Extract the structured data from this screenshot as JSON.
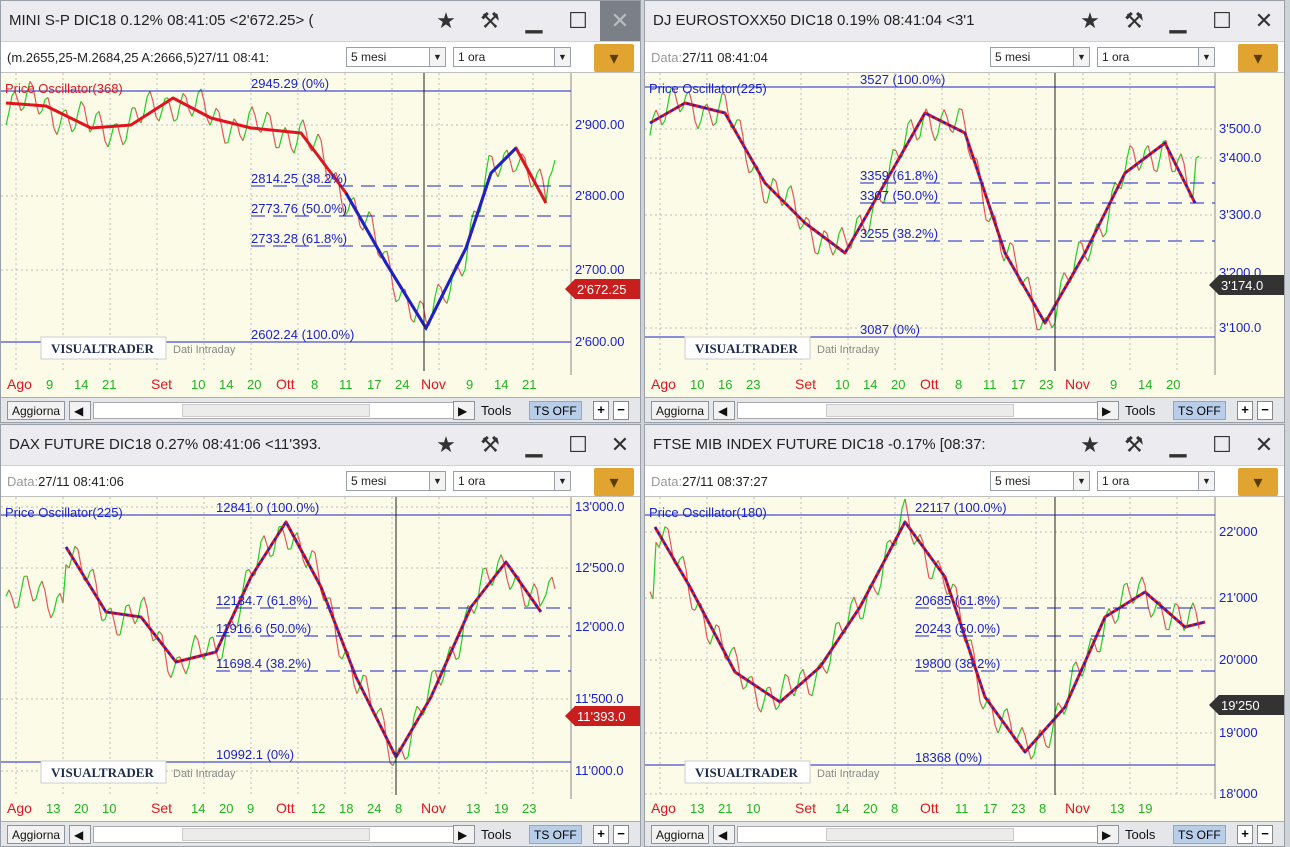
{
  "colors": {
    "accent": "#e2a431",
    "fib_line": "#1a23c8",
    "osc_red": "#e0141e",
    "price_up": "#1fd11f",
    "price_down": "#e01414",
    "price_box_red": "#c81e1e",
    "price_box_dark": "#333333"
  },
  "panels": [
    {
      "title": "MINI S-P DIC18 0.12% 08:41:05  <2'672.25> (",
      "info": "(m.2655,25-M.2684,25 A:2666,5)27/11 08:41:",
      "info_label": "",
      "period": "5 mesi",
      "interval": "1 ora",
      "oscillator_label": "Price Oscillator(368)",
      "fib_labels": [
        "2945.29 (0%)",
        "2814.25 (38.2%)",
        "2773.76 (50.0%)",
        "2733.28 (61.8%)",
        "2602.24 (100.0%)"
      ],
      "price_axis": [
        "2'900.00",
        "2'800.00",
        "2'700.00",
        "2'600.00"
      ],
      "price_box": "2'672.25",
      "brand": "VISUALTRADER",
      "note": "Dati Intraday",
      "months": [
        "Ago",
        "Set",
        "Ott",
        "Nov"
      ],
      "days": [
        "9",
        "14",
        "21",
        "10",
        "14",
        "20",
        "8",
        "11",
        "17",
        "24",
        "9",
        "14",
        "21"
      ],
      "footer": {
        "refresh": "Aggiorna",
        "tools": "Tools",
        "tsoff": "TS OFF",
        "plus": "+",
        "minus": "−"
      }
    },
    {
      "title": "DJ EUROSTOXX50 DIC18 0.19% 08:41:04  <3'1",
      "info": "27/11 08:41:04",
      "info_label": "Data:",
      "period": "5 mesi",
      "interval": "1 ora",
      "oscillator_label": "Price Oscillator(225)",
      "fib_labels": [
        "3527 (100.0%)",
        "3359 (61.8%)",
        "3307 (50.0%)",
        "3255 (38.2%)",
        "3087 (0%)"
      ],
      "price_axis": [
        "3'500.0",
        "3'400.0",
        "3'300.0",
        "3'200.0",
        "3'100.0"
      ],
      "price_box": "3'174.0",
      "brand": "VISUALTRADER",
      "note": "Dati Intraday",
      "months": [
        "Ago",
        "Set",
        "Ott",
        "Nov"
      ],
      "days": [
        "10",
        "16",
        "23",
        "10",
        "14",
        "20",
        "8",
        "11",
        "17",
        "23",
        "9",
        "14",
        "20"
      ],
      "footer": {
        "refresh": "Aggiorna",
        "tools": "Tools",
        "tsoff": "TS OFF",
        "plus": "+",
        "minus": "−"
      }
    },
    {
      "title": "DAX FUTURE DIC18 0.27% 08:41:06  <11'393.",
      "info": "27/11 08:41:06",
      "info_label": "Data:",
      "period": "5 mesi",
      "interval": "1 ora",
      "oscillator_label": "Price Oscillator(225)",
      "fib_labels": [
        "12841.0 (100.0%)",
        "12134.7 (61.8%)",
        "11916.6 (50.0%)",
        "11698.4 (38.2%)",
        "10992.1 (0%)"
      ],
      "price_axis": [
        "13'000.0",
        "12'500.0",
        "12'000.0",
        "11'500.0",
        "11'000.0"
      ],
      "price_box": "11'393.0",
      "brand": "VISUALTRADER",
      "note": "Dati Intraday",
      "months": [
        "Ago",
        "Set",
        "Ott",
        "Nov"
      ],
      "days": [
        "13",
        "20",
        "10",
        "14",
        "20",
        "9",
        "12",
        "18",
        "24",
        "8",
        "13",
        "19",
        "23"
      ],
      "footer": {
        "refresh": "Aggiorna",
        "tools": "Tools",
        "tsoff": "TS OFF",
        "plus": "+",
        "minus": "−"
      }
    },
    {
      "title": "FTSE MIB INDEX FUTURE DIC18 -0.17% [08:37:",
      "info": "27/11 08:37:27",
      "info_label": "Data:",
      "period": "5 mesi",
      "interval": "1 ora",
      "oscillator_label": "Price Oscillator(180)",
      "fib_labels": [
        "22117 (100.0%)",
        "20685 (61.8%)",
        "20243 (50.0%)",
        "19800 (38.2%)",
        "18368 (0%)"
      ],
      "price_axis": [
        "22'000",
        "21'000",
        "20'000",
        "19'000",
        "18'000"
      ],
      "price_box": "19'250",
      "brand": "VISUALTRADER",
      "note": "Dati Intraday",
      "months": [
        "Ago",
        "Set",
        "Ott",
        "Nov"
      ],
      "days": [
        "13",
        "21",
        "10",
        "14",
        "20",
        "8",
        "11",
        "17",
        "23",
        "8",
        "13",
        "19"
      ],
      "footer": {
        "refresh": "Aggiorna",
        "tools": "Tools",
        "tsoff": "TS OFF",
        "plus": "+",
        "minus": "−"
      }
    }
  ]
}
